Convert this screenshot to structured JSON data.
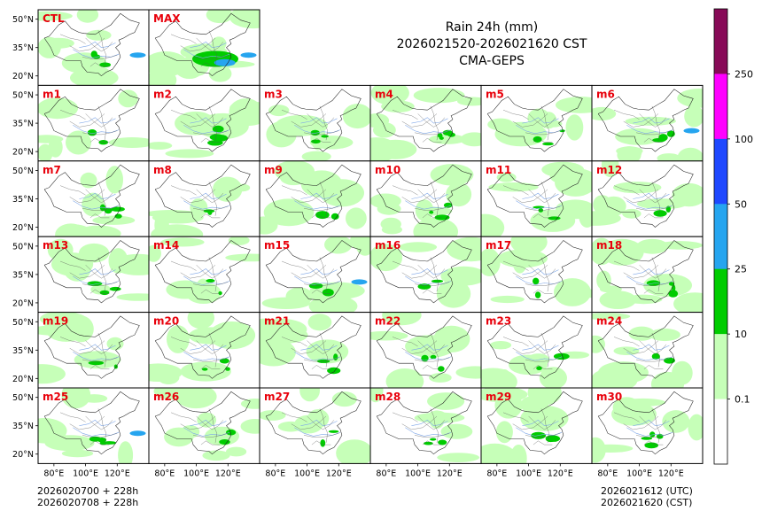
{
  "chart_data": {
    "type": "heatmap",
    "title_lines": [
      "Rain 24h (mm)",
      "2026021520-2026021620 CST",
      "CMA-GEPS"
    ],
    "panels": [
      "CTL",
      "MAX",
      "m1",
      "m2",
      "m3",
      "m4",
      "m5",
      "m6",
      "m7",
      "m8",
      "m9",
      "m10",
      "m11",
      "m12",
      "m13",
      "m14",
      "m15",
      "m16",
      "m17",
      "m18",
      "m19",
      "m20",
      "m21",
      "m22",
      "m23",
      "m24",
      "m25",
      "m26",
      "m27",
      "m28",
      "m29",
      "m30"
    ],
    "y_ticks": [
      {
        "value": 50,
        "label": "50°N"
      },
      {
        "value": 35,
        "label": "35°N"
      },
      {
        "value": 20,
        "label": "20°N"
      }
    ],
    "x_ticks": [
      {
        "value": 80,
        "label": "80°E"
      },
      {
        "value": 100,
        "label": "100°E"
      },
      {
        "value": 120,
        "label": "120°E"
      }
    ],
    "lon_range": [
      70,
      140
    ],
    "lat_range": [
      15,
      55
    ],
    "colorbar": {
      "levels": [
        "0.1",
        "10",
        "25",
        "50",
        "100",
        "250"
      ],
      "colors": [
        "#ffffff",
        "#c6ffb8",
        "#00cc00",
        "#26a5ef",
        "#1f48ff",
        "#ff00ff",
        "#870a57"
      ]
    },
    "footer_left": [
      "2026020700 + 228h",
      "2026020708 + 228h"
    ],
    "footer_right": [
      "2026021612 (UTC)",
      "2026021620 (CST)"
    ]
  }
}
